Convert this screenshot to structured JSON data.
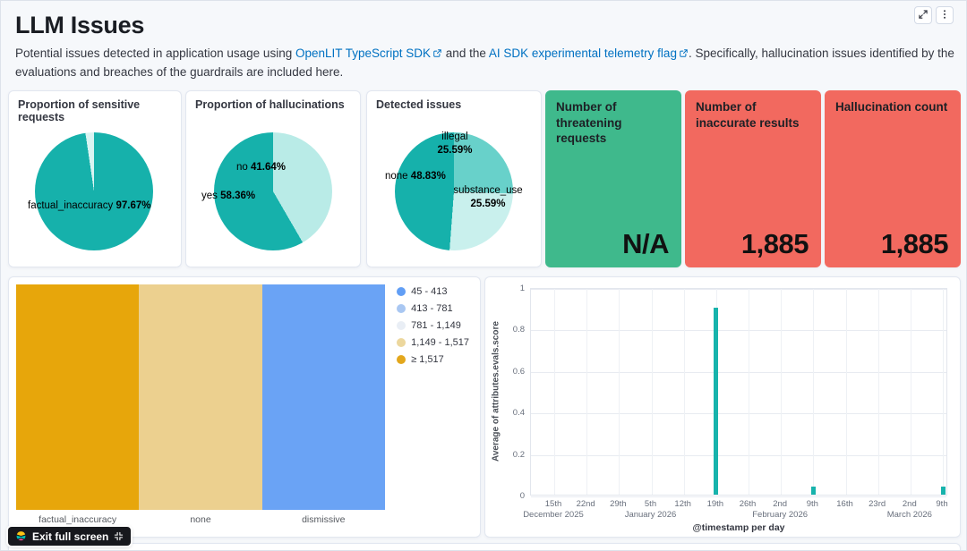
{
  "header": {
    "title": "LLM Issues",
    "description": {
      "part1": "Potential issues detected in application usage using ",
      "link1": "OpenLIT TypeScript SDK",
      "part2": " and the ",
      "link2": "AI SDK experimental telemetry flag",
      "part3": ". Specifically, hallucination issues identified by the evaluations and breaches of the guardrails are included here."
    }
  },
  "exit_button": {
    "label": "Exit full screen"
  },
  "chart_data": [
    {
      "type": "pie",
      "title": "Proportion of sensitive requests",
      "slices": [
        {
          "label": "factual_inaccuracy",
          "value": 97.67,
          "pct": "97.67%",
          "color": "#16b1ab"
        },
        {
          "label": "",
          "value": 2.33,
          "pct": "",
          "color": "#d9f4f2"
        }
      ]
    },
    {
      "type": "pie",
      "title": "Proportion of hallucinations",
      "slices": [
        {
          "label": "no",
          "value": 41.64,
          "pct": "41.64%",
          "color": "#b9ebe7"
        },
        {
          "label": "yes",
          "value": 58.36,
          "pct": "58.36%",
          "color": "#16b1ab"
        }
      ]
    },
    {
      "type": "pie",
      "title": "Detected issues",
      "slices": [
        {
          "label": "illegal",
          "value": 25.59,
          "pct": "25.59%",
          "color": "#68d1ca"
        },
        {
          "label": "substance_use",
          "value": 25.59,
          "pct": "25.59%",
          "color": "#c9f0ed"
        },
        {
          "label": "none",
          "value": 48.83,
          "pct": "48.83%",
          "color": "#16b1ab"
        }
      ]
    },
    {
      "type": "metric",
      "title": "Number of threatening requests",
      "value": "N/A",
      "background": "#3fb98c"
    },
    {
      "type": "metric",
      "title": "Number of inaccurate results",
      "value": "1,885",
      "background": "#f2695f"
    },
    {
      "type": "metric",
      "title": "Hallucination count",
      "value": "1,885",
      "background": "#f2695f"
    },
    {
      "type": "treemap",
      "categories": [
        "factual_inaccuracy",
        "none",
        "dismissive"
      ],
      "colors": [
        "#e7a60b",
        "#ecd08f",
        "#6aa3f5"
      ],
      "legend": [
        {
          "label": "45 - 413",
          "color": "#619ef5"
        },
        {
          "label": "413 - 781",
          "color": "#a9c7f2"
        },
        {
          "label": "781 - 1,149",
          "color": "#e9eef5"
        },
        {
          "label": "1,149 - 1,517",
          "color": "#ecd79d"
        },
        {
          "label": "≥ 1,517",
          "color": "#e3a71c"
        }
      ]
    },
    {
      "type": "bar",
      "ylabel": "Average of attributes.evals.score",
      "xlabel": "@timestamp per day",
      "ylim": [
        0,
        1
      ],
      "yticks": [
        0,
        0.2,
        0.4,
        0.6,
        0.8,
        1
      ],
      "x_ticks": [
        {
          "day": "15th",
          "month": "December 2025"
        },
        {
          "day": "22nd"
        },
        {
          "day": "29th"
        },
        {
          "day": "5th",
          "month": "January 2026"
        },
        {
          "day": "12th"
        },
        {
          "day": "19th"
        },
        {
          "day": "26th"
        },
        {
          "day": "2nd",
          "month": "February 2026"
        },
        {
          "day": "9th"
        },
        {
          "day": "16th"
        },
        {
          "day": "23rd"
        },
        {
          "day": "2nd",
          "month": "March 2026"
        },
        {
          "day": "9th"
        }
      ],
      "bars": [
        {
          "tick_index": 5,
          "value": 0.9
        },
        {
          "tick_index": 8,
          "value": 0.04
        },
        {
          "tick_index": 12,
          "value": 0.04
        }
      ],
      "bar_color": "#17b3ac"
    }
  ]
}
